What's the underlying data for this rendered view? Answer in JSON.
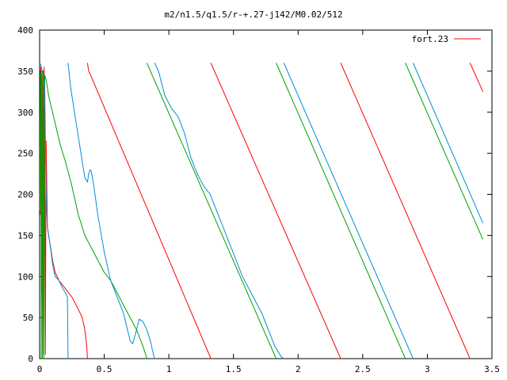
{
  "chart_data": {
    "type": "line",
    "title": "m2/n1.5/q1.5/r-+.27-j142/M0.02/512",
    "xlabel": "",
    "ylabel": "",
    "xlim": [
      0,
      3.5
    ],
    "ylim": [
      0,
      400
    ],
    "x_ticks": [
      "0",
      "0.5",
      "1",
      "1.5",
      "2",
      "2.5",
      "3",
      "3.5"
    ],
    "y_ticks": [
      "0",
      "50",
      "100",
      "150",
      "200",
      "250",
      "300",
      "350",
      "400"
    ],
    "grid": false,
    "legend_position": "top-right",
    "legend": {
      "label": "fort.23"
    },
    "series": [
      {
        "name": "fort.23",
        "color": "#ff0000",
        "points": [
          [
            0.005,
            175
          ],
          [
            0.008,
            355
          ],
          [
            0.012,
            340
          ],
          [
            0.015,
            80
          ],
          [
            0.018,
            120
          ],
          [
            0.022,
            50
          ],
          [
            0.025,
            350
          ],
          [
            0.028,
            300
          ],
          [
            0.032,
            5
          ],
          [
            0.035,
            355
          ],
          [
            0.038,
            320
          ],
          [
            0.045,
            5
          ],
          [
            0.05,
            265
          ],
          [
            0.06,
            160
          ],
          [
            0.08,
            140
          ],
          [
            0.1,
            120
          ],
          [
            0.12,
            105
          ],
          [
            0.15,
            95
          ],
          [
            0.2,
            85
          ],
          [
            0.25,
            75
          ],
          [
            0.3,
            60
          ],
          [
            0.33,
            50
          ],
          [
            0.35,
            35
          ],
          [
            0.365,
            15
          ],
          [
            0.37,
            0
          ],
          null,
          [
            0.37,
            360
          ],
          [
            0.38,
            350
          ],
          [
            0.4,
            343
          ],
          [
            1.325,
            0
          ],
          null,
          [
            1.325,
            360
          ],
          [
            2.33,
            0
          ],
          null,
          [
            2.33,
            360
          ],
          [
            3.33,
            0
          ],
          null,
          [
            3.33,
            360
          ],
          [
            3.43,
            325
          ]
        ]
      },
      {
        "name": "",
        "color": "#00a000",
        "points": [
          [
            0.002,
            180
          ],
          [
            0.006,
            350
          ],
          [
            0.01,
            345
          ],
          [
            0.013,
            0
          ],
          [
            0.018,
            350
          ],
          [
            0.022,
            0
          ],
          [
            0.028,
            350
          ],
          [
            0.033,
            0
          ],
          [
            0.04,
            345
          ],
          [
            0.05,
            340
          ],
          [
            0.07,
            320
          ],
          [
            0.1,
            300
          ],
          [
            0.13,
            280
          ],
          [
            0.16,
            260
          ],
          [
            0.2,
            240
          ],
          [
            0.25,
            210
          ],
          [
            0.3,
            175
          ],
          [
            0.35,
            150
          ],
          [
            0.4,
            135
          ],
          [
            0.45,
            120
          ],
          [
            0.5,
            105
          ],
          [
            0.55,
            95
          ],
          [
            0.6,
            80
          ],
          [
            0.65,
            65
          ],
          [
            0.7,
            50
          ],
          [
            0.75,
            35
          ],
          [
            0.8,
            15
          ],
          [
            0.82,
            5
          ],
          [
            0.83,
            0
          ],
          null,
          [
            0.83,
            360
          ],
          [
            1.83,
            0
          ],
          null,
          [
            1.83,
            360
          ],
          [
            2.83,
            0
          ],
          null,
          [
            2.83,
            360
          ],
          [
            3.43,
            145
          ]
        ]
      },
      {
        "name": "",
        "color": "#008cd8",
        "points": [
          [
            0.0,
            360
          ],
          [
            0.01,
            358
          ],
          [
            0.02,
            350
          ],
          [
            0.03,
            345
          ],
          [
            0.04,
            330
          ],
          [
            0.05,
            200
          ],
          [
            0.06,
            160
          ],
          [
            0.08,
            140
          ],
          [
            0.1,
            115
          ],
          [
            0.12,
            100
          ],
          [
            0.15,
            95
          ],
          [
            0.18,
            85
          ],
          [
            0.2,
            80
          ],
          [
            0.215,
            75
          ],
          [
            0.22,
            0
          ],
          null,
          [
            0.22,
            360
          ],
          [
            0.24,
            330
          ],
          [
            0.27,
            300
          ],
          [
            0.3,
            270
          ],
          [
            0.33,
            240
          ],
          [
            0.35,
            220
          ],
          [
            0.37,
            215
          ],
          [
            0.38,
            225
          ],
          [
            0.39,
            230
          ],
          [
            0.4,
            228
          ],
          [
            0.42,
            210
          ],
          [
            0.45,
            175
          ],
          [
            0.5,
            130
          ],
          [
            0.55,
            95
          ],
          [
            0.6,
            75
          ],
          [
            0.65,
            55
          ],
          [
            0.7,
            22
          ],
          [
            0.72,
            18
          ],
          [
            0.75,
            35
          ],
          [
            0.77,
            48
          ],
          [
            0.8,
            45
          ],
          [
            0.83,
            35
          ],
          [
            0.86,
            20
          ],
          [
            0.88,
            5
          ],
          [
            0.89,
            0
          ],
          null,
          [
            0.89,
            360
          ],
          [
            0.92,
            350
          ],
          [
            0.97,
            320
          ],
          [
            1.02,
            305
          ],
          [
            1.07,
            295
          ],
          [
            1.12,
            275
          ],
          [
            1.17,
            245
          ],
          [
            1.22,
            225
          ],
          [
            1.27,
            210
          ],
          [
            1.32,
            200
          ],
          [
            1.37,
            180
          ],
          [
            1.42,
            160
          ],
          [
            1.47,
            140
          ],
          [
            1.52,
            120
          ],
          [
            1.57,
            100
          ],
          [
            1.62,
            85
          ],
          [
            1.67,
            70
          ],
          [
            1.72,
            55
          ],
          [
            1.77,
            35
          ],
          [
            1.82,
            15
          ],
          [
            1.87,
            2
          ],
          [
            1.89,
            0
          ],
          null,
          [
            1.89,
            360
          ],
          [
            2.89,
            0
          ],
          null,
          [
            2.89,
            360
          ],
          [
            3.43,
            165
          ]
        ]
      }
    ]
  }
}
